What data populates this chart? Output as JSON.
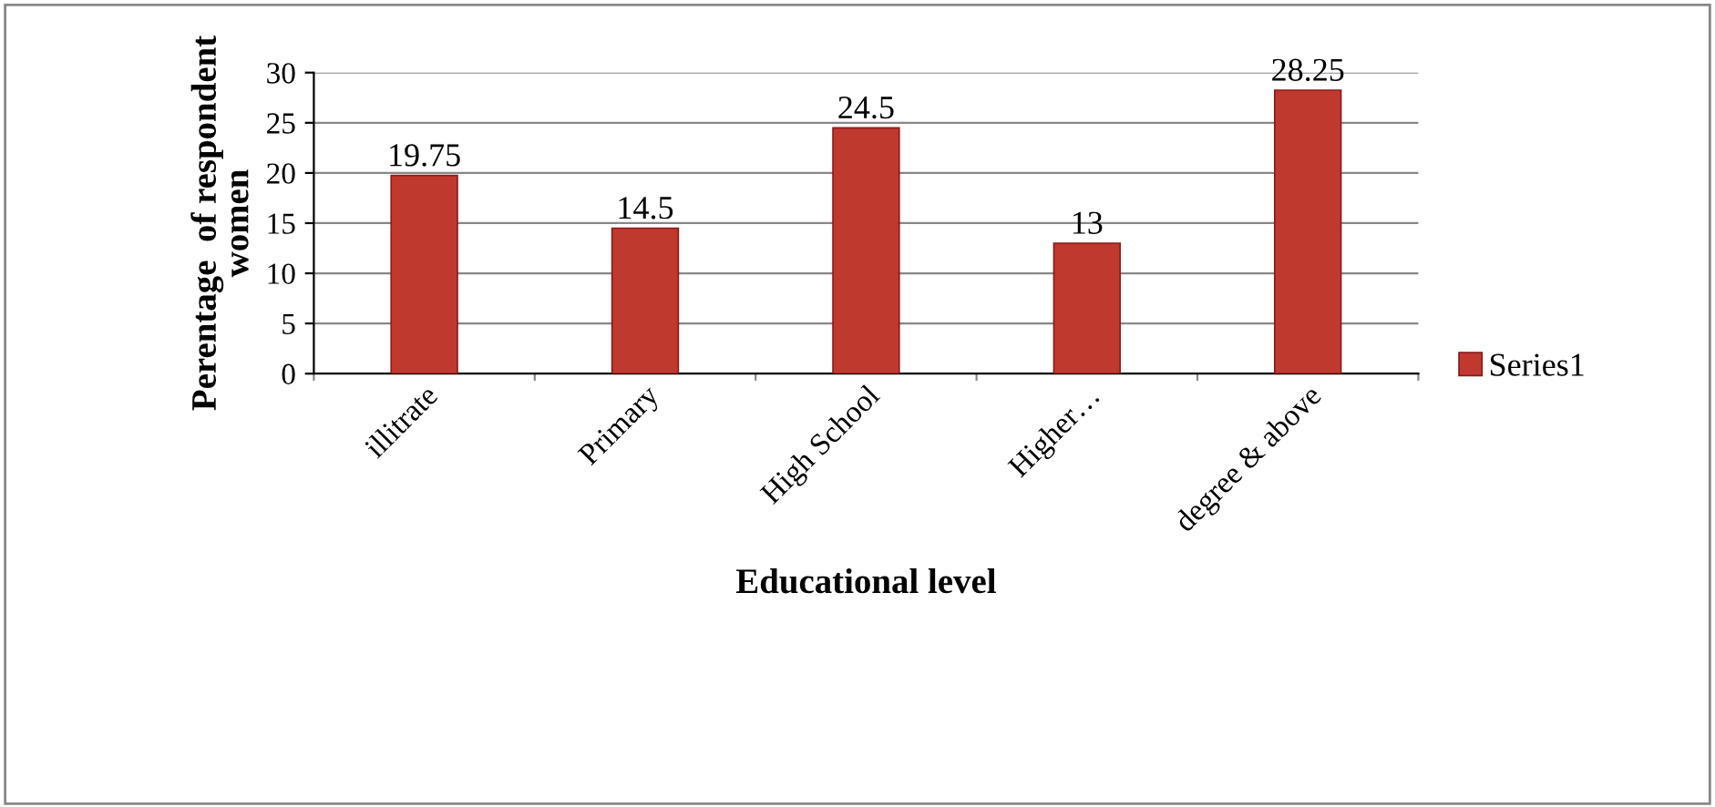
{
  "chart_data": {
    "type": "bar",
    "xlabel": "Educational level",
    "ylabel": "Perentage  of respondent women",
    "categories": [
      "illitrate",
      "Primary",
      "High School",
      "Higher…",
      "degree & above"
    ],
    "series": [
      {
        "name": "Series1",
        "color": "#c0392f",
        "values": [
          19.75,
          14.5,
          24.5,
          13,
          28.25
        ]
      }
    ],
    "ylim": [
      0,
      30
    ],
    "yticks": [
      0,
      5,
      10,
      15,
      20,
      25,
      30
    ],
    "grid": "y",
    "legend": "right",
    "data_labels": true
  }
}
